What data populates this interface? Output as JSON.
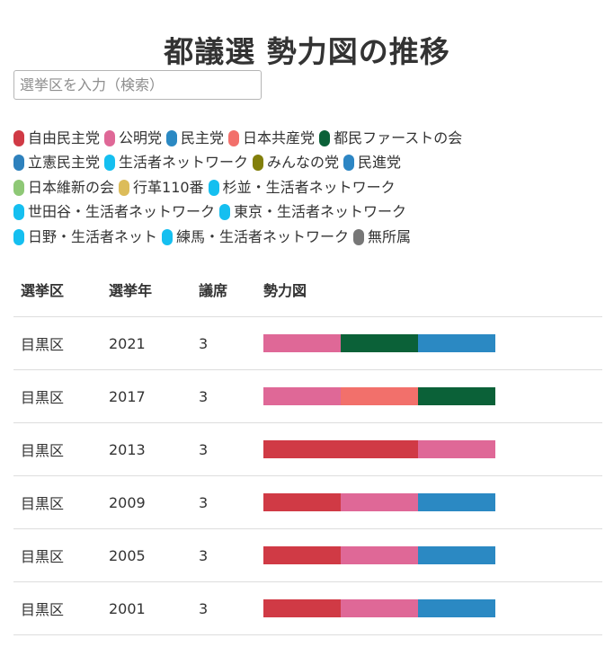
{
  "title": "都議選 勢力図の推移",
  "search": {
    "placeholder": "選挙区を入力（検索）",
    "value": ""
  },
  "parties": {
    "jimin": {
      "label": "自由民主党",
      "color": "#d03a45"
    },
    "komei": {
      "label": "公明党",
      "color": "#df6897"
    },
    "minshu": {
      "label": "民主党",
      "color": "#2b89c3"
    },
    "kyosan": {
      "label": "日本共産党",
      "color": "#f2706b"
    },
    "tomin": {
      "label": "都民ファーストの会",
      "color": "#0b6138"
    },
    "rikken": {
      "label": "立憲民主党",
      "color": "#2e81bd"
    },
    "seikatsusha": {
      "label": "生活者ネットワーク",
      "color": "#15bff0"
    },
    "minna": {
      "label": "みんなの党",
      "color": "#827f0b"
    },
    "minshin": {
      "label": "民進党",
      "color": "#2d86c4"
    },
    "ishin": {
      "label": "日本維新の会",
      "color": "#8ec876"
    },
    "kokaku": {
      "label": "行革110番",
      "color": "#dcbc5a"
    },
    "suginami": {
      "label": "杉並・生活者ネットワーク",
      "color": "#15bff0"
    },
    "setagaya": {
      "label": "世田谷・生活者ネットワーク",
      "color": "#15bff0"
    },
    "tokyo": {
      "label": "東京・生活者ネットワーク",
      "color": "#15bff0"
    },
    "hino": {
      "label": "日野・生活者ネット",
      "color": "#15bff0"
    },
    "nerima": {
      "label": "練馬・生活者ネットワーク",
      "color": "#15bff0"
    },
    "mushozoku": {
      "label": "無所属",
      "color": "#777777"
    }
  },
  "legend_rows": [
    [
      "jimin",
      "komei",
      "minshu",
      "kyosan",
      "tomin"
    ],
    [
      "rikken",
      "seikatsusha",
      "minna",
      "minshin"
    ],
    [
      "ishin",
      "kokaku",
      "suginami"
    ],
    [
      "setagaya",
      "tokyo"
    ],
    [
      "hino",
      "nerima",
      "mushozoku"
    ]
  ],
  "table": {
    "headers": {
      "district": "選挙区",
      "year": "選挙年",
      "seats": "議席",
      "bar": "勢力図"
    },
    "rows": [
      {
        "district": "目黒区",
        "year": "2021",
        "seats": "3",
        "parties": [
          "komei",
          "tomin",
          "minshu"
        ]
      },
      {
        "district": "目黒区",
        "year": "2017",
        "seats": "3",
        "parties": [
          "komei",
          "kyosan",
          "tomin"
        ]
      },
      {
        "district": "目黒区",
        "year": "2013",
        "seats": "3",
        "parties": [
          "jimin",
          "jimin",
          "komei"
        ]
      },
      {
        "district": "目黒区",
        "year": "2009",
        "seats": "3",
        "parties": [
          "jimin",
          "komei",
          "minshu"
        ]
      },
      {
        "district": "目黒区",
        "year": "2005",
        "seats": "3",
        "parties": [
          "jimin",
          "komei",
          "minshu"
        ]
      },
      {
        "district": "目黒区",
        "year": "2001",
        "seats": "3",
        "parties": [
          "jimin",
          "komei",
          "minshu"
        ]
      }
    ]
  }
}
